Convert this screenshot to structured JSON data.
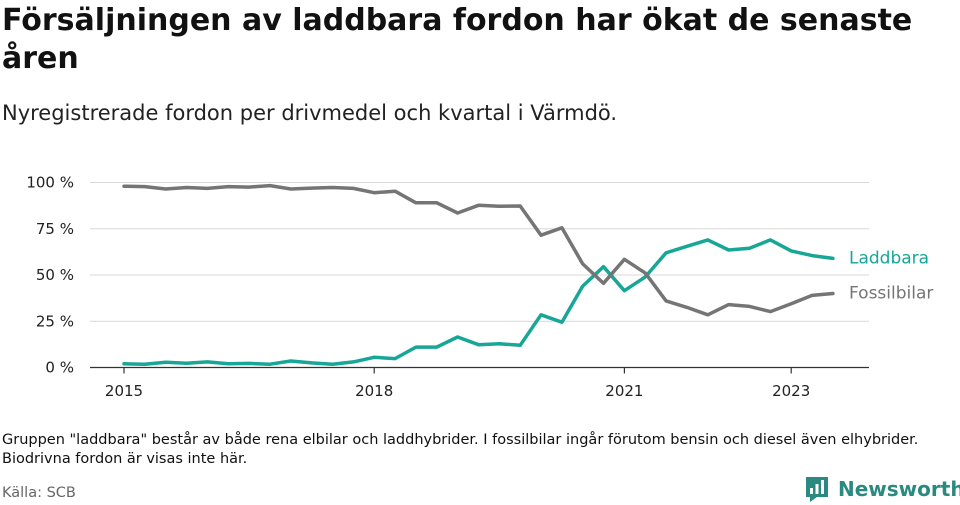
{
  "title": "Försäljningen av laddbara fordon har ökat de senaste åren",
  "subtitle": "Nyregistrerade fordon per drivmedel och kvartal i Värmdö.",
  "footnote": "Gruppen \"laddbara\" består av både rena elbilar och laddhybrider. I fossilbilar ingår förutom bensin och diesel även elhybrider. Biodrivna fordon är visas inte här.",
  "source": "Källa: SCB",
  "logo_text": "Newsworthy",
  "chart_data": {
    "type": "line",
    "title": "Försäljningen av laddbara fordon har ökat de senaste åren",
    "xlabel": "",
    "ylabel": "",
    "x_ticks": [
      "2015",
      "2018",
      "2021",
      "2023"
    ],
    "y_ticks": [
      {
        "value": 0,
        "label": "0 %"
      },
      {
        "value": 25,
        "label": "25 %"
      },
      {
        "value": 50,
        "label": "50 %"
      },
      {
        "value": 75,
        "label": "75 %"
      },
      {
        "value": 100,
        "label": "100 %"
      }
    ],
    "ylim": [
      0,
      100
    ],
    "grid": true,
    "x": [
      "2015Q1",
      "2015Q2",
      "2015Q3",
      "2015Q4",
      "2016Q1",
      "2016Q2",
      "2016Q3",
      "2016Q4",
      "2017Q1",
      "2017Q2",
      "2017Q3",
      "2017Q4",
      "2018Q1",
      "2018Q2",
      "2018Q3",
      "2018Q4",
      "2019Q1",
      "2019Q2",
      "2019Q3",
      "2019Q4",
      "2020Q1",
      "2020Q2",
      "2020Q3",
      "2020Q4",
      "2021Q1",
      "2021Q2",
      "2021Q3",
      "2021Q4",
      "2022Q1",
      "2022Q2",
      "2022Q3",
      "2022Q4",
      "2023Q1",
      "2023Q2",
      "2023Q3"
    ],
    "series": [
      {
        "name": "Laddbara",
        "color": "#17a697",
        "values": [
          2,
          1.8,
          2.8,
          2.3,
          3,
          2,
          2.2,
          1.8,
          3.5,
          2.5,
          1.8,
          3,
          5.5,
          4.8,
          11,
          11,
          16.5,
          12.3,
          12.8,
          12,
          28.5,
          24.5,
          44,
          54.5,
          41.5,
          49,
          62,
          65.5,
          69,
          63.5,
          64.5,
          69,
          63,
          60.5,
          59
        ]
      },
      {
        "name": "Fossilbilar",
        "color": "#757575",
        "values": [
          98,
          97.8,
          96.5,
          97.3,
          96.8,
          97.8,
          97.5,
          98.3,
          96.5,
          97,
          97.3,
          96.8,
          94.5,
          95.3,
          89,
          89,
          83.5,
          87.7,
          87.2,
          87.3,
          71.5,
          75.5,
          56,
          45.5,
          58.5,
          51,
          36,
          32.5,
          28.5,
          34,
          33,
          30.2,
          34.5,
          39,
          40
        ]
      }
    ]
  }
}
